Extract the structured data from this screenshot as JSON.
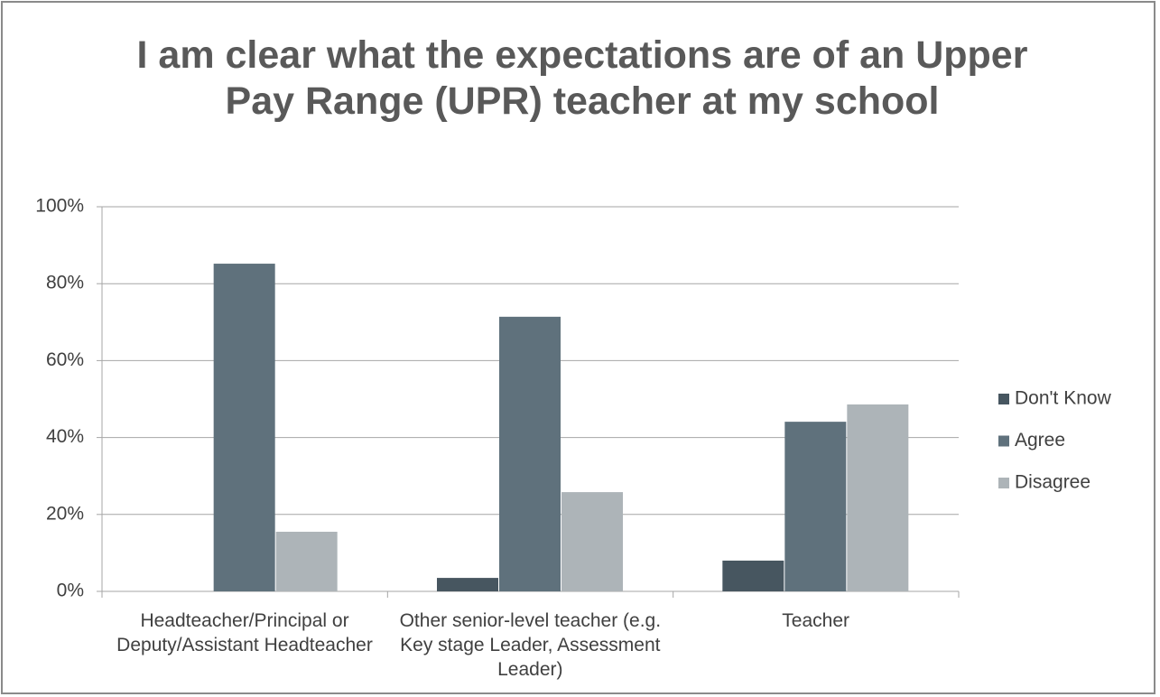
{
  "chart_data": {
    "type": "bar",
    "title": "I am clear what the expectations are of an Upper Pay Range (UPR) teacher at my school",
    "categories": [
      "Headteacher/Principal or Deputy/Assistant Headteacher",
      "Other senior-level teacher (e.g. Key stage Leader, Assessment Leader)",
      "Teacher"
    ],
    "series": [
      {
        "name": "Don't Know",
        "color": "#475660",
        "values": [
          0,
          3.5,
          8
        ]
      },
      {
        "name": "Agree",
        "color": "#5f717c",
        "values": [
          85.2,
          71.4,
          44.1
        ]
      },
      {
        "name": "Disagree",
        "color": "#adb4b8",
        "values": [
          15.5,
          25.8,
          48.6
        ]
      }
    ],
    "ylim": [
      0,
      100
    ],
    "yticks": [
      {
        "value": 0,
        "label": "0%"
      },
      {
        "value": 20,
        "label": "20%"
      },
      {
        "value": 40,
        "label": "40%"
      },
      {
        "value": 60,
        "label": "60%"
      },
      {
        "value": 80,
        "label": "80%"
      },
      {
        "value": 100,
        "label": "100%"
      }
    ],
    "grid": true,
    "legend": "right"
  }
}
